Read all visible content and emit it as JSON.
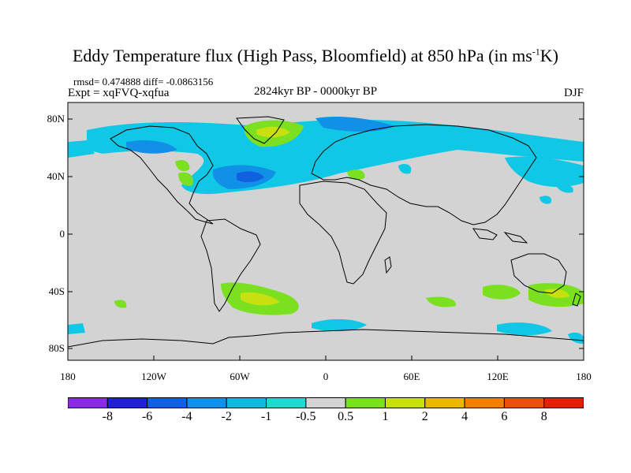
{
  "header": {
    "title_main": "Eddy Temperature flux (High Pass, Bloomfield) at 850 hPa (in ms",
    "title_sup": "-1",
    "title_end": "K)",
    "rmsd_line": "rmsd= 0.474888 diff= -0.0863156",
    "expt_line": "Expt = xqFVQ-xqfua",
    "period": "2824kyr BP - 0000kyr BP",
    "season": "DJF"
  },
  "axes": {
    "lat_labels": [
      "80N",
      "40N",
      "0",
      "40S",
      "80S"
    ],
    "lon_labels": [
      "180",
      "120W",
      "60W",
      "0",
      "60E",
      "120E",
      "180"
    ]
  },
  "colorbar": {
    "labels": [
      "-8",
      "-6",
      "-4",
      "-2",
      "-1",
      "-0.5",
      "0.5",
      "1",
      "2",
      "4",
      "6",
      "8"
    ],
    "colors": [
      "#8a2be2",
      "#2020d0",
      "#1060e0",
      "#1090e6",
      "#10b8e0",
      "#20d8d0",
      "#d3d3d3",
      "#7ae020",
      "#c8e010",
      "#e8b800",
      "#f08000",
      "#e85010",
      "#e02000"
    ]
  },
  "map_colors": {
    "background": "#d3d3d3",
    "light_blue": "#10c8e6",
    "mid_blue": "#1090e6",
    "dark_blue": "#1060e0",
    "green": "#7ae020",
    "yellow": "#c8e010"
  }
}
